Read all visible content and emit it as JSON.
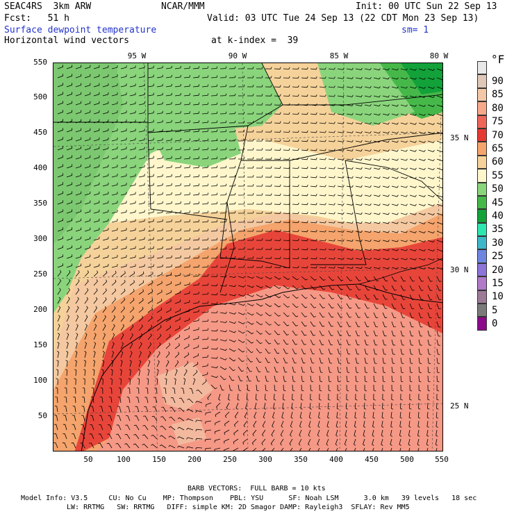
{
  "header": {
    "model": "SEAC4RS  3km ARW",
    "org": "NCAR/MMM",
    "init": "Init: 00 UTC Sun 22 Sep 13",
    "fcst": "Fcst:   51 h",
    "valid": "Valid: 03 UTC Tue 24 Sep 13 (22 CDT Mon 23 Sep 13)",
    "field1": "Surface dewpoint temperature",
    "smooth": "sm= 1",
    "field2": "Horizontal wind vectors",
    "level": "at k-index =  39"
  },
  "axes": {
    "y_ticks": [
      "550",
      "500",
      "450",
      "400",
      "350",
      "300",
      "250",
      "200",
      "150",
      "100",
      "50"
    ],
    "x_ticks": [
      "50",
      "100",
      "150",
      "200",
      "250",
      "300",
      "350",
      "400",
      "450",
      "500",
      "550"
    ],
    "lon_labels": [
      "95 W",
      "90 W",
      "85 W",
      "80 W"
    ],
    "lat_labels": [
      "35 N",
      "30 N",
      "25 N"
    ]
  },
  "colorbar": {
    "unit": "°F",
    "labels": [
      "90",
      "85",
      "80",
      "75",
      "70",
      "65",
      "60",
      "55",
      "50",
      "45",
      "40",
      "35",
      "30",
      "25",
      "20",
      "15",
      "10",
      "5",
      "0"
    ],
    "colors": [
      "#e8e8e8",
      "#e0c8b8",
      "#f2c8a8",
      "#f6a98a",
      "#ef6659",
      "#e43a32",
      "#f4a46c",
      "#f5d29a",
      "#fff6cc",
      "#8ad47c",
      "#46b84a",
      "#13a13a",
      "#2ee6b0",
      "#3cb8c8",
      "#6f86e0",
      "#8c74d8",
      "#b07ac8",
      "#9c7a98",
      "#7a7a7a",
      "#8b0a8b"
    ]
  },
  "footer": {
    "barb": "BARB VECTORS:  FULL BARB = 10 kts",
    "line1": "Model Info: V3.5     CU: No Cu    MP: Thompson    PBL: YSU      SF: Noah LSM      3.0 km   39 levels   18 sec",
    "line2": "LW: RRTMG   SW: RRTMG   DIFF: simple KM: 2D Smagor DAMP: Rayleigh3  SFLAY: Rev MM5"
  }
}
